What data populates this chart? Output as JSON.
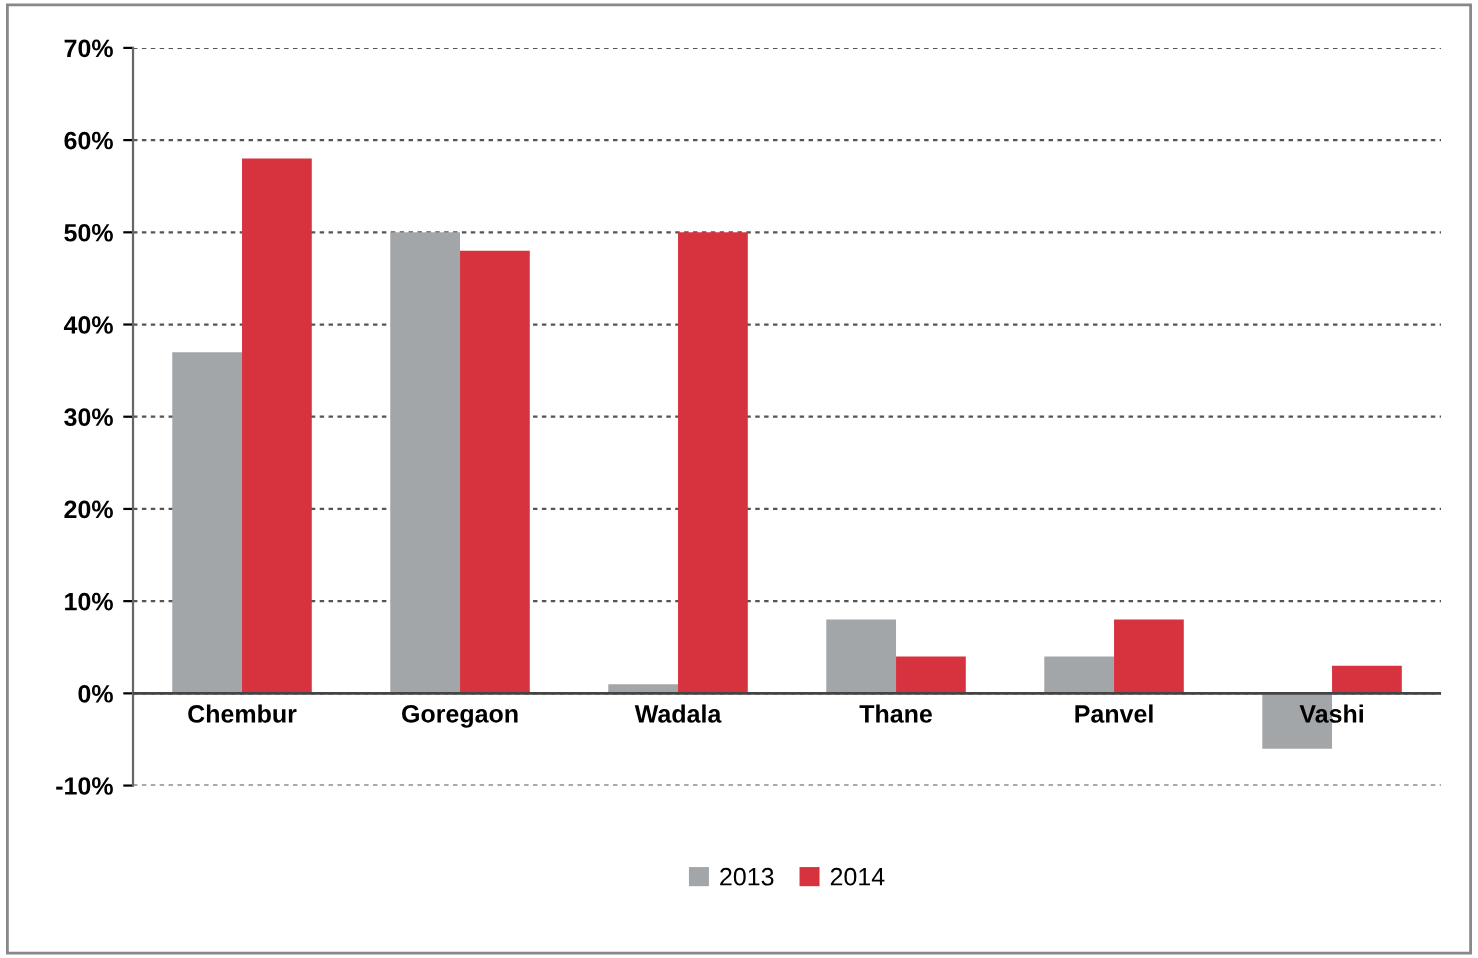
{
  "chart_data": {
    "type": "bar",
    "categories": [
      "Chembur",
      "Goregaon",
      "Wadala",
      "Thane",
      "Panvel",
      "Vashi"
    ],
    "series": [
      {
        "name": "2013",
        "color": "#a3a6a9",
        "values": [
          37,
          50,
          1,
          8,
          4,
          -6
        ]
      },
      {
        "name": "2014",
        "color": "#d7333f",
        "values": [
          58,
          48,
          50,
          4,
          8,
          3
        ]
      }
    ],
    "ylim": [
      -10,
      70
    ],
    "yticks": [
      {
        "value": -10,
        "label": "-10%"
      },
      {
        "value": 0,
        "label": "0%"
      },
      {
        "value": 10,
        "label": "10%"
      },
      {
        "value": 20,
        "label": "20%"
      },
      {
        "value": 30,
        "label": "30%"
      },
      {
        "value": 40,
        "label": "40%"
      },
      {
        "value": 50,
        "label": "50%"
      },
      {
        "value": 60,
        "label": "60%"
      },
      {
        "value": 70,
        "label": "70%"
      }
    ],
    "grid": "y",
    "legend": "bottom"
  }
}
